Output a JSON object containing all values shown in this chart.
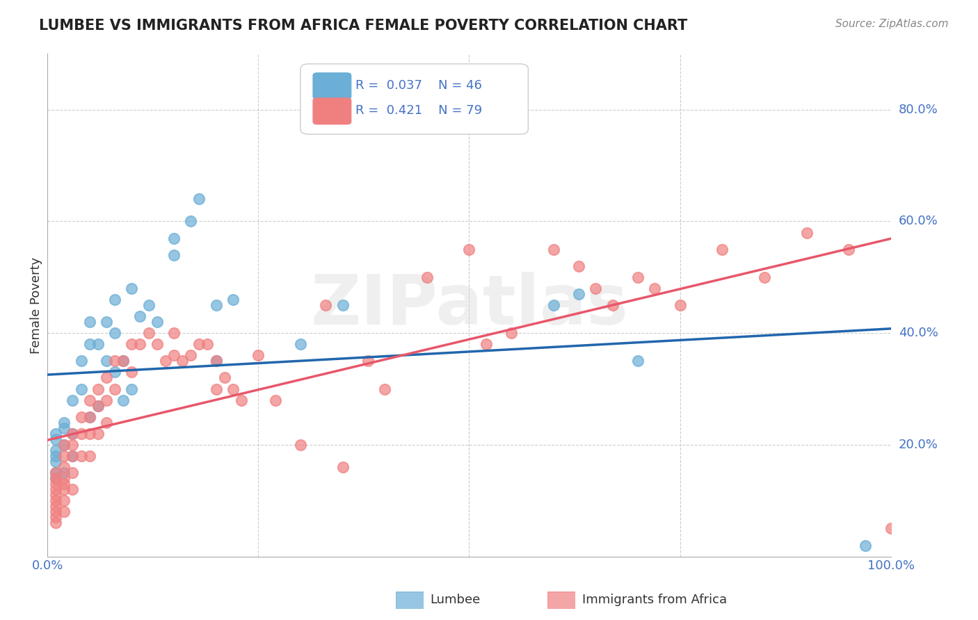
{
  "title": "LUMBEE VS IMMIGRANTS FROM AFRICA FEMALE POVERTY CORRELATION CHART",
  "source": "Source: ZipAtlas.com",
  "ylabel": "Female Poverty",
  "xlim": [
    0.0,
    1.0
  ],
  "ylim": [
    0.0,
    0.9
  ],
  "watermark": "ZIPatlas",
  "legend1_R": "0.037",
  "legend1_N": "46",
  "legend2_R": "0.421",
  "legend2_N": "79",
  "lumbee_color": "#6baed6",
  "africa_color": "#f08080",
  "lumbee_line_color": "#2166ac",
  "africa_line_color": "#e8576a",
  "africa_dashed_color": "#f4a0a8",
  "grid_color": "#cccccc",
  "lumbee_x": [
    0.01,
    0.01,
    0.01,
    0.01,
    0.01,
    0.01,
    0.01,
    0.02,
    0.02,
    0.02,
    0.02,
    0.03,
    0.03,
    0.03,
    0.04,
    0.04,
    0.05,
    0.05,
    0.05,
    0.06,
    0.06,
    0.07,
    0.07,
    0.08,
    0.08,
    0.08,
    0.09,
    0.09,
    0.1,
    0.1,
    0.11,
    0.12,
    0.13,
    0.15,
    0.15,
    0.17,
    0.18,
    0.2,
    0.2,
    0.22,
    0.3,
    0.35,
    0.6,
    0.63,
    0.7,
    0.97
  ],
  "lumbee_y": [
    0.22,
    0.21,
    0.19,
    0.18,
    0.17,
    0.15,
    0.14,
    0.24,
    0.23,
    0.2,
    0.15,
    0.28,
    0.22,
    0.18,
    0.35,
    0.3,
    0.42,
    0.38,
    0.25,
    0.38,
    0.27,
    0.42,
    0.35,
    0.46,
    0.4,
    0.33,
    0.35,
    0.28,
    0.48,
    0.3,
    0.43,
    0.45,
    0.42,
    0.57,
    0.54,
    0.6,
    0.64,
    0.45,
    0.35,
    0.46,
    0.38,
    0.45,
    0.45,
    0.47,
    0.35,
    0.02
  ],
  "africa_x": [
    0.01,
    0.01,
    0.01,
    0.01,
    0.01,
    0.01,
    0.01,
    0.01,
    0.01,
    0.01,
    0.02,
    0.02,
    0.02,
    0.02,
    0.02,
    0.02,
    0.02,
    0.02,
    0.03,
    0.03,
    0.03,
    0.03,
    0.03,
    0.04,
    0.04,
    0.04,
    0.05,
    0.05,
    0.05,
    0.05,
    0.06,
    0.06,
    0.06,
    0.07,
    0.07,
    0.07,
    0.08,
    0.08,
    0.09,
    0.1,
    0.1,
    0.11,
    0.12,
    0.13,
    0.14,
    0.15,
    0.15,
    0.16,
    0.17,
    0.18,
    0.19,
    0.2,
    0.2,
    0.21,
    0.22,
    0.23,
    0.25,
    0.27,
    0.3,
    0.33,
    0.35,
    0.38,
    0.4,
    0.45,
    0.5,
    0.52,
    0.55,
    0.6,
    0.63,
    0.65,
    0.67,
    0.7,
    0.72,
    0.75,
    0.8,
    0.85,
    0.9,
    0.95,
    1.0
  ],
  "africa_y": [
    0.15,
    0.14,
    0.13,
    0.12,
    0.11,
    0.1,
    0.09,
    0.08,
    0.07,
    0.06,
    0.2,
    0.18,
    0.16,
    0.14,
    0.13,
    0.12,
    0.1,
    0.08,
    0.22,
    0.2,
    0.18,
    0.15,
    0.12,
    0.25,
    0.22,
    0.18,
    0.28,
    0.25,
    0.22,
    0.18,
    0.3,
    0.27,
    0.22,
    0.32,
    0.28,
    0.24,
    0.35,
    0.3,
    0.35,
    0.38,
    0.33,
    0.38,
    0.4,
    0.38,
    0.35,
    0.4,
    0.36,
    0.35,
    0.36,
    0.38,
    0.38,
    0.35,
    0.3,
    0.32,
    0.3,
    0.28,
    0.36,
    0.28,
    0.2,
    0.45,
    0.16,
    0.35,
    0.3,
    0.5,
    0.55,
    0.38,
    0.4,
    0.55,
    0.52,
    0.48,
    0.45,
    0.5,
    0.48,
    0.45,
    0.55,
    0.5,
    0.58,
    0.55,
    0.05
  ]
}
